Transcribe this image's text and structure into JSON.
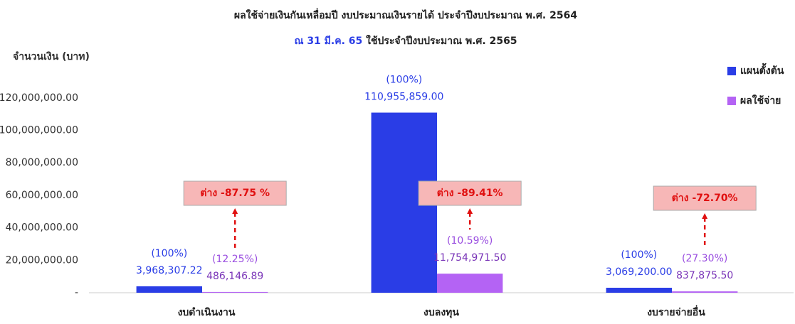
{
  "chart_data": {
    "type": "bar",
    "title": "ผลใช้จ่ายเงินกันเหลื่อมปี งบประมาณเงินรายได้ ประจำปีงบประมาณ พ.ศ. 2564",
    "subtitle": [
      "ณ 31 มี.ค. 65",
      "ใช้ประจำปีงบประมาณ พ.ศ. 2565"
    ],
    "y_label": "จำนวนเงิน (บาท)",
    "categories": [
      "งบดำเนินงาน",
      "งบลงทุน",
      "งบรายจ่ายอื่น"
    ],
    "series": [
      {
        "name": "แผนตั้งต้น",
        "color": "#2a3de6",
        "values": [
          3968307.22,
          110955859.0,
          3069200.0
        ],
        "value_labels": [
          "3,968,307.22",
          "110,955,859.00",
          "3,069,200.00"
        ],
        "percent_labels": [
          "(100%)",
          "(100%)",
          "(100%)"
        ]
      },
      {
        "name": "ผลใช้จ่าย",
        "color": "#b463f4",
        "values": [
          486146.89,
          11754971.5,
          837875.5
        ],
        "value_labels": [
          "486,146.89",
          "11,754,971.50",
          "837,875.50"
        ],
        "percent_labels": [
          "(12.25%)",
          "(10.59%)",
          "(27.30%)"
        ]
      }
    ],
    "annotations": [
      "ต่าง -87.75 %",
      "ต่าง -89.41%",
      "ต่าง -72.70%"
    ],
    "ylim": [
      0,
      130000000
    ],
    "yticks": [
      {
        "value": 0,
        "label": "-"
      },
      {
        "value": 20000000,
        "label": "20,000,000.00"
      },
      {
        "value": 40000000,
        "label": "40,000,000.00"
      },
      {
        "value": 60000000,
        "label": "60,000,000.00"
      },
      {
        "value": 80000000,
        "label": "80,000,000.00"
      },
      {
        "value": 100000000,
        "label": "100,000,000.00"
      },
      {
        "value": 120000000,
        "label": "120,000,000.00"
      }
    ],
    "grid": false,
    "legend": "top-right"
  }
}
